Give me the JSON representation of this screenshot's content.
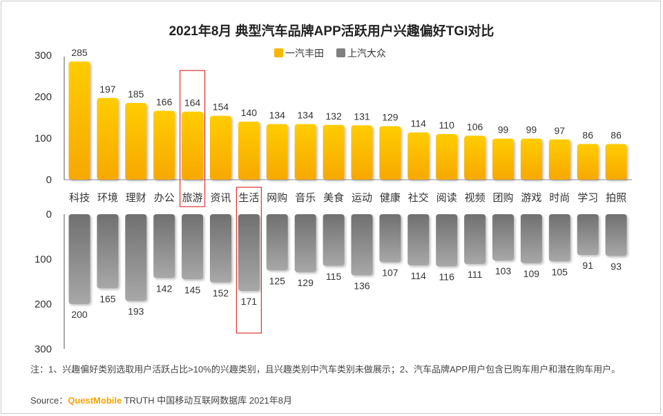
{
  "title": "2021年8月 典型汽车品牌APP活跃用户兴趣偏好TGI对比",
  "chart_data": {
    "type": "bar",
    "title": "2021年8月 典型汽车品牌APP活跃用户兴趣偏好TGI对比",
    "categories": [
      "科技",
      "环境",
      "理财",
      "办公",
      "旅游",
      "资讯",
      "生活",
      "网购",
      "音乐",
      "美食",
      "运动",
      "健康",
      "社交",
      "阅读",
      "视频",
      "团购",
      "游戏",
      "时尚",
      "学习",
      "拍照"
    ],
    "series": [
      {
        "name": "一汽丰田",
        "color": "#f8b800",
        "values": [
          285,
          197,
          185,
          166,
          164,
          154,
          140,
          134,
          134,
          132,
          131,
          129,
          114,
          110,
          106,
          99,
          99,
          97,
          86,
          86
        ]
      },
      {
        "name": "上汽大众",
        "color": "#808080",
        "values": [
          200,
          165,
          193,
          142,
          145,
          152,
          171,
          125,
          129,
          115,
          136,
          107,
          114,
          116,
          111,
          103,
          109,
          105,
          91,
          93
        ]
      }
    ],
    "top_axis": {
      "ylim": [
        0,
        300
      ],
      "ticks": [
        "300",
        "200",
        "100",
        "0"
      ]
    },
    "bottom_axis": {
      "ylim": [
        0,
        300
      ],
      "ticks": [
        "0",
        "100",
        "200",
        "300"
      ],
      "inverted": true
    },
    "legend_position": "top-center",
    "highlighted_categories": [
      "旅游",
      "生活"
    ],
    "highlight_color": "#e03030"
  },
  "note": "注：1、兴趣偏好类别选取用户活跃占比>10%的兴趣类别，且兴趣类别中汽车类别未做展示；2、汽车品牌APP用户包含已购车用户和潜在购车用户。",
  "source": {
    "prefix": "Source：",
    "brand": "QuestMobile",
    "rest": " TRUTH 中国移动互联网数据库 2021年8月"
  }
}
